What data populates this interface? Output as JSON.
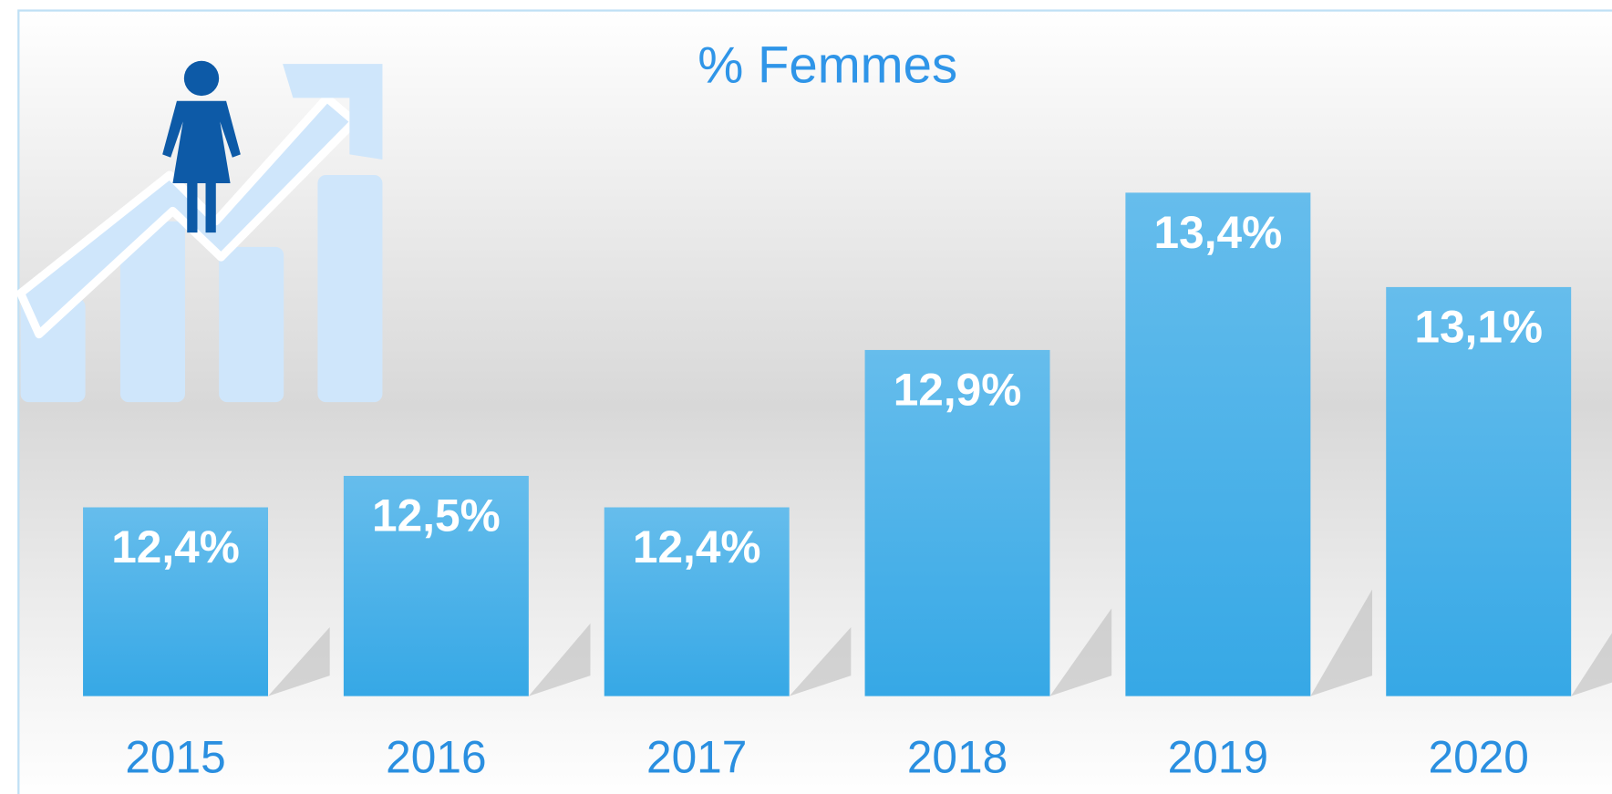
{
  "chart_data": {
    "type": "bar",
    "title": "% Femmes",
    "categories": [
      "2015",
      "2016",
      "2017",
      "2018",
      "2019",
      "2020"
    ],
    "values": [
      12.4,
      12.5,
      12.4,
      12.9,
      13.4,
      13.1
    ],
    "value_labels": [
      "12,4%",
      "12,5%",
      "12,4%",
      "12,9%",
      "13,4%",
      "13,1%"
    ],
    "color": "#3aa9e6",
    "ylim": [
      11.8,
      13.6
    ]
  }
}
